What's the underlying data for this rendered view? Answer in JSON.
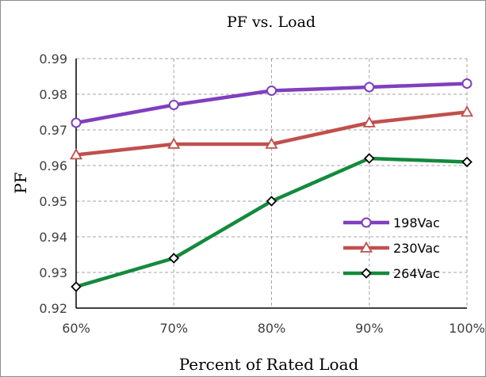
{
  "chart_data": {
    "type": "line",
    "title": "PF vs. Load",
    "xlabel": "Percent of Rated Load",
    "ylabel": "PF",
    "categories": [
      "60%",
      "70%",
      "80%",
      "90%",
      "100%"
    ],
    "ylim": [
      0.92,
      0.99
    ],
    "yticks": [
      "0.92",
      "0.93",
      "0.94",
      "0.95",
      "0.96",
      "0.97",
      "0.98",
      "0.99"
    ],
    "grid": true,
    "legend_position": "bottom-right",
    "series": [
      {
        "name": "198Vac",
        "values": [
          0.972,
          0.977,
          0.981,
          0.982,
          0.983
        ],
        "color": "#7f3fbf",
        "marker": "circle"
      },
      {
        "name": "230Vac",
        "values": [
          0.963,
          0.966,
          0.966,
          0.972,
          0.975
        ],
        "color": "#c0504d",
        "marker": "triangle"
      },
      {
        "name": "264Vac",
        "values": [
          0.926,
          0.934,
          0.95,
          0.962,
          0.961
        ],
        "color": "#138a3c",
        "marker": "diamond"
      }
    ]
  }
}
